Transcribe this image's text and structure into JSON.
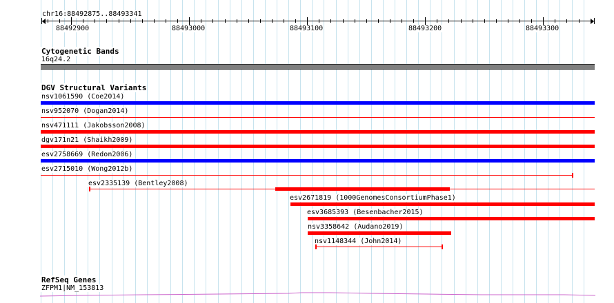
{
  "ruler": {
    "location": "chr16:88492875..88493341",
    "ticks": [
      "88492900",
      "88493000",
      "88493100",
      "88493200",
      "88493300"
    ]
  },
  "tracks": {
    "cytoband": {
      "title": "Cytogenetic Bands",
      "band_label": "16q24.2",
      "band_color": "#7f7f7f"
    },
    "dgv": {
      "title": "DGV Structural Variants",
      "colors": {
        "gain": "#0000ff",
        "loss": "#ff0000"
      },
      "variants": [
        {
          "label": "nsv1061590 (Coe2014)",
          "color": "#0000ff"
        },
        {
          "label": "nsv952070 (Dogan2014)",
          "color": "#ff0000"
        },
        {
          "label": "nsv471111 (Jakobsson2008)",
          "color": "#ff0000"
        },
        {
          "label": "dgv171n21 (Shaikh2009)",
          "color": "#ff0000"
        },
        {
          "label": "esv2758669 (Redon2006)",
          "color": "#0000ff"
        },
        {
          "label": "esv2715010 (Wong2012b)",
          "color": "#ff0000"
        },
        {
          "label": "esv2335139 (Bentley2008)",
          "color": "#ff0000"
        },
        {
          "label": "esv2671819 (1000GenomesConsortiumPhase1)",
          "color": "#ff0000"
        },
        {
          "label": "esv3685393 (Besenbacher2015)",
          "color": "#ff0000"
        },
        {
          "label": "nsv3358642 (Audano2019)",
          "color": "#ff0000"
        },
        {
          "label": "nsv1148344 (John2014)",
          "color": "#ff0000"
        }
      ]
    },
    "refseq": {
      "title": "RefSeq Genes",
      "gene_label": "ZFPM1|NM_153813",
      "color": "#cc66cc"
    }
  }
}
